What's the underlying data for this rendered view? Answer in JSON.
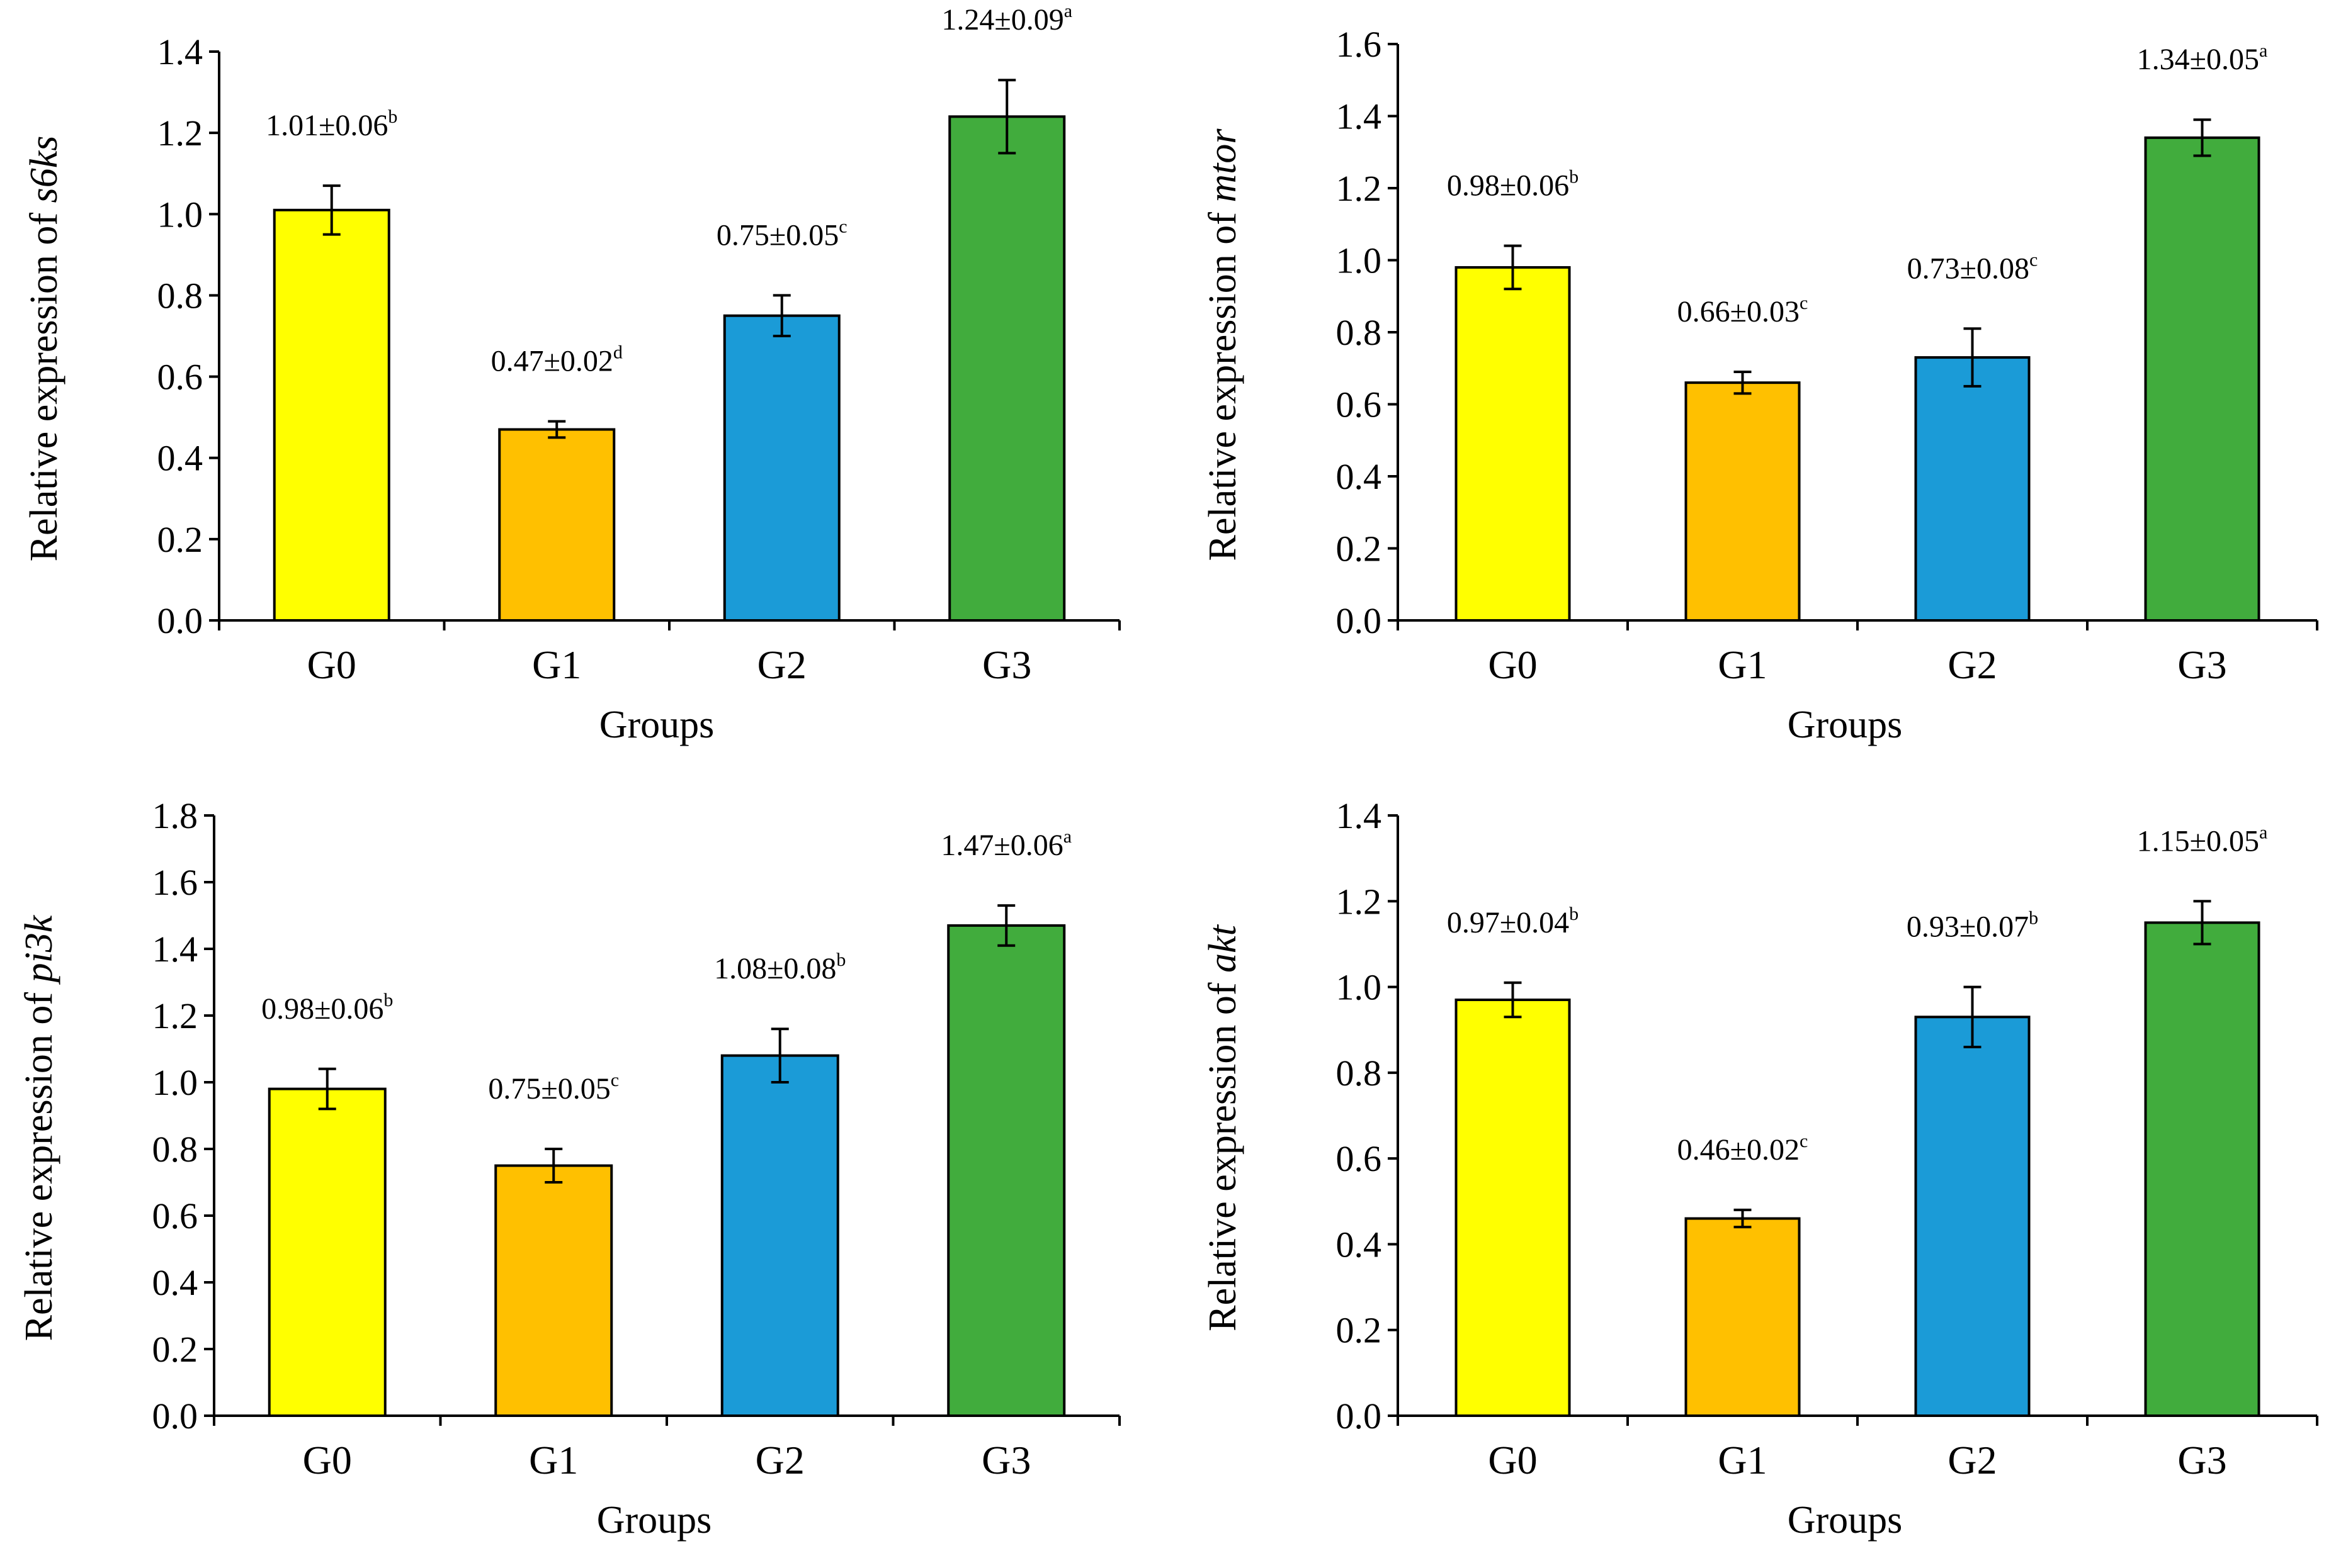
{
  "chart_data": [
    {
      "type": "bar",
      "categories": [
        "G0",
        "G1",
        "G2",
        "G3"
      ],
      "values": [
        1.01,
        0.47,
        0.75,
        1.24
      ],
      "errors": [
        0.06,
        0.02,
        0.05,
        0.09
      ],
      "data_labels": [
        {
          "text": "1.01±0.06",
          "sup": "b"
        },
        {
          "text": "0.47±0.02",
          "sup": "d"
        },
        {
          "text": "0.75±0.05",
          "sup": "c"
        },
        {
          "text": "1.24±0.09",
          "sup": "a"
        }
      ],
      "colors": [
        "#FFFF00",
        "#FFC000",
        "#1B9BD7",
        "#41AC3D"
      ],
      "xlabel": "Groups",
      "ylabel": {
        "prefix": "Relative expression of ",
        "gene": "s6ks"
      },
      "ylim": [
        0,
        1.4
      ],
      "yticks": [
        "0.0",
        "0.2",
        "0.4",
        "0.6",
        "0.8",
        "1.0",
        "1.2",
        "1.4"
      ],
      "grid": false
    },
    {
      "type": "bar",
      "categories": [
        "G0",
        "G1",
        "G2",
        "G3"
      ],
      "values": [
        0.98,
        0.66,
        0.73,
        1.34
      ],
      "errors": [
        0.06,
        0.03,
        0.08,
        0.05
      ],
      "data_labels": [
        {
          "text": "0.98±0.06",
          "sup": "b"
        },
        {
          "text": "0.66±0.03",
          "sup": "c"
        },
        {
          "text": "0.73±0.08",
          "sup": "c"
        },
        {
          "text": "1.34±0.05",
          "sup": "a"
        }
      ],
      "colors": [
        "#FFFF00",
        "#FFC000",
        "#1B9BD7",
        "#41AC3D"
      ],
      "xlabel": "Groups",
      "ylabel": {
        "prefix": "Relative expression of ",
        "gene": "mtor"
      },
      "ylim": [
        0,
        1.6
      ],
      "yticks": [
        "0.0",
        "0.2",
        "0.4",
        "0.6",
        "0.8",
        "1.0",
        "1.2",
        "1.4",
        "1.6"
      ],
      "grid": false
    },
    {
      "type": "bar",
      "categories": [
        "G0",
        "G1",
        "G2",
        "G3"
      ],
      "values": [
        0.98,
        0.75,
        1.08,
        1.47
      ],
      "errors": [
        0.06,
        0.05,
        0.08,
        0.06
      ],
      "data_labels": [
        {
          "text": "0.98±0.06",
          "sup": "b"
        },
        {
          "text": "0.75±0.05",
          "sup": "c"
        },
        {
          "text": "1.08±0.08",
          "sup": "b"
        },
        {
          "text": "1.47±0.06",
          "sup": "a"
        }
      ],
      "colors": [
        "#FFFF00",
        "#FFC000",
        "#1B9BD7",
        "#41AC3D"
      ],
      "xlabel": "Groups",
      "ylabel": {
        "prefix": "Relative expression of ",
        "gene": "pi3k"
      },
      "ylim": [
        0,
        1.8
      ],
      "yticks": [
        "0.0",
        "0.2",
        "0.4",
        "0.6",
        "0.8",
        "1.0",
        "1.2",
        "1.4",
        "1.6",
        "1.8"
      ],
      "grid": false
    },
    {
      "type": "bar",
      "categories": [
        "G0",
        "G1",
        "G2",
        "G3"
      ],
      "values": [
        0.97,
        0.46,
        0.93,
        1.15
      ],
      "errors": [
        0.04,
        0.02,
        0.07,
        0.05
      ],
      "data_labels": [
        {
          "text": "0.97±0.04",
          "sup": "b"
        },
        {
          "text": "0.46±0.02",
          "sup": "c"
        },
        {
          "text": "0.93±0.07",
          "sup": "b"
        },
        {
          "text": "1.15±0.05",
          "sup": "a"
        }
      ],
      "colors": [
        "#FFFF00",
        "#FFC000",
        "#1B9BD7",
        "#41AC3D"
      ],
      "xlabel": "Groups",
      "ylabel": {
        "prefix": "Relative expression of ",
        "gene": "akt"
      },
      "ylim": [
        0,
        1.4
      ],
      "yticks": [
        "0.0",
        "0.2",
        "0.4",
        "0.6",
        "0.8",
        "1.0",
        "1.2",
        "1.4"
      ],
      "grid": false
    }
  ]
}
